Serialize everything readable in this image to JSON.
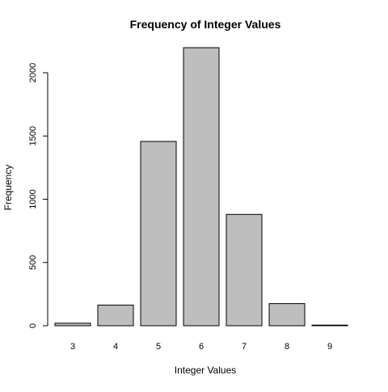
{
  "chart_data": {
    "type": "bar",
    "title": "Frequency of Integer Values",
    "xlabel": "Integer Values",
    "ylabel": "Frequency",
    "categories": [
      "3",
      "4",
      "5",
      "6",
      "7",
      "8",
      "9"
    ],
    "values": [
      20,
      163,
      1457,
      2198,
      880,
      175,
      5
    ],
    "ylim": [
      0,
      2200
    ],
    "y_ticks": [
      0,
      500,
      1000,
      1500,
      2000
    ],
    "grid": false,
    "colors": {
      "bar_fill": "#bebebe",
      "bar_stroke": "#000000",
      "text": "#000000",
      "background": "#ffffff"
    }
  }
}
